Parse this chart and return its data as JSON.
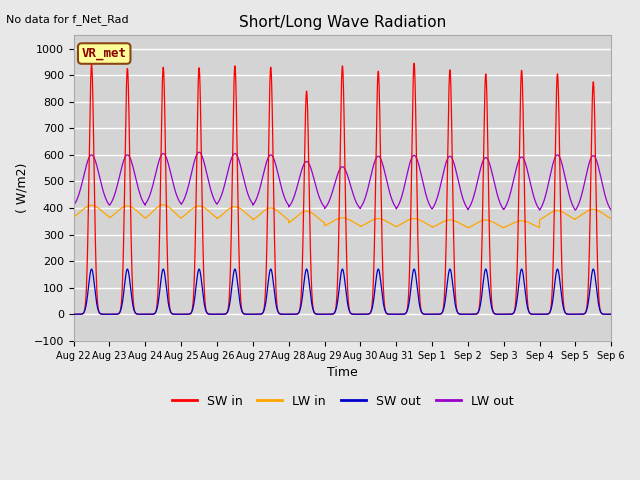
{
  "title": "Short/Long Wave Radiation",
  "xlabel": "Time",
  "ylabel": "( W/m2)",
  "ylim": [
    -100,
    1050
  ],
  "background_color": "#e8e8e8",
  "plot_bg_color": "#d4d4d4",
  "grid_color": "#ffffff",
  "text_no_data": "No data for f_Net_Rad",
  "legend_box_label": "VR_met",
  "x_tick_labels": [
    "Aug 22",
    "Aug 23",
    "Aug 24",
    "Aug 25",
    "Aug 26",
    "Aug 27",
    "Aug 28",
    "Aug 29",
    "Aug 30",
    "Aug 31",
    "Sep 1",
    "Sep 2",
    "Sep 3",
    "Sep 4",
    "Sep 5",
    "Sep 6"
  ],
  "series": {
    "SW_in": {
      "color": "#ff0000",
      "label": "SW in"
    },
    "LW_in": {
      "color": "#ffa500",
      "label": "LW in"
    },
    "SW_out": {
      "color": "#0000cc",
      "label": "SW out"
    },
    "LW_out": {
      "color": "#9900cc",
      "label": "LW out"
    }
  },
  "num_days": 15,
  "points_per_day": 1440,
  "sw_peaks": [
    940,
    925,
    930,
    928,
    935,
    930,
    840,
    935,
    915,
    945,
    920,
    905,
    918,
    905,
    875
  ],
  "lw_out_peaks": [
    600,
    600,
    605,
    610,
    605,
    600,
    575,
    555,
    595,
    598,
    595,
    590,
    592,
    600,
    597
  ],
  "lw_out_night": [
    395,
    395,
    400,
    398,
    400,
    395,
    390,
    385,
    385,
    380,
    380,
    378,
    378,
    375,
    375
  ],
  "lw_in_peaks": [
    410,
    408,
    412,
    408,
    405,
    400,
    388,
    363,
    360,
    360,
    355,
    355,
    352,
    390,
    395
  ],
  "lw_in_night": [
    352,
    348,
    345,
    348,
    345,
    340,
    330,
    323,
    320,
    320,
    318,
    315,
    318,
    345,
    348
  ]
}
